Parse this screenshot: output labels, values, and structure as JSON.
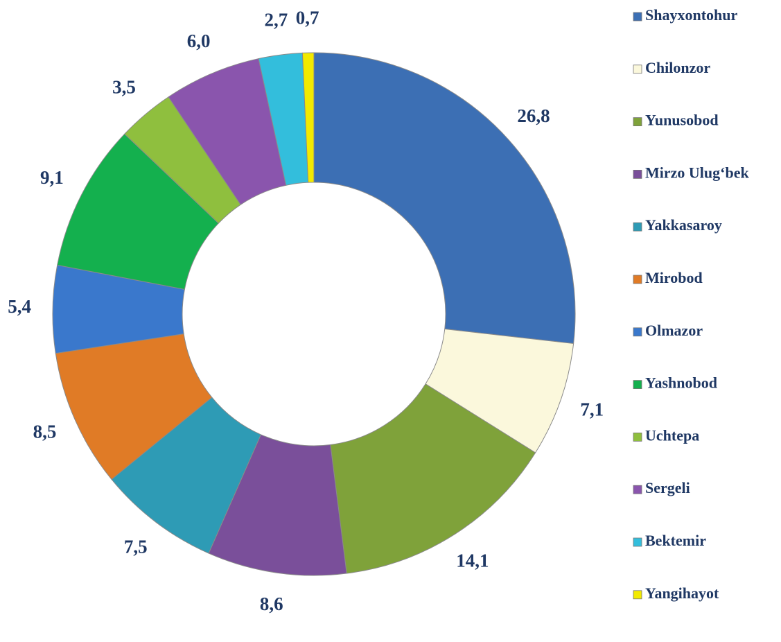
{
  "chart_data": {
    "type": "donut",
    "categories": [
      "Shayxontohur",
      "Chilonzor",
      "Yunusobod",
      "Mirzo Ulug‘bek",
      "Yakkasaroy",
      "Mirobod",
      "Olmazor",
      "Yashnobod",
      "Uchtepa",
      "Sergeli",
      "Bektemir",
      "Yangihayot"
    ],
    "values": [
      26.8,
      7.1,
      14.1,
      8.6,
      7.5,
      8.5,
      5.4,
      9.1,
      3.5,
      6.0,
      2.7,
      0.7
    ],
    "value_labels": [
      "26,8",
      "7,1",
      "14,1",
      "8,6",
      "7,5",
      "8,5",
      "5,4",
      "9,1",
      "3,5",
      "6,0",
      "2,7",
      "0,7"
    ],
    "colors": [
      "#3c6fb4",
      "#fbf8dc",
      "#7fa23a",
      "#7a4f9a",
      "#2e9bb5",
      "#e07b26",
      "#3a78cc",
      "#14b04e",
      "#8fbf3e",
      "#8a55ad",
      "#33bedc",
      "#f2ea00"
    ],
    "legend": "right"
  }
}
